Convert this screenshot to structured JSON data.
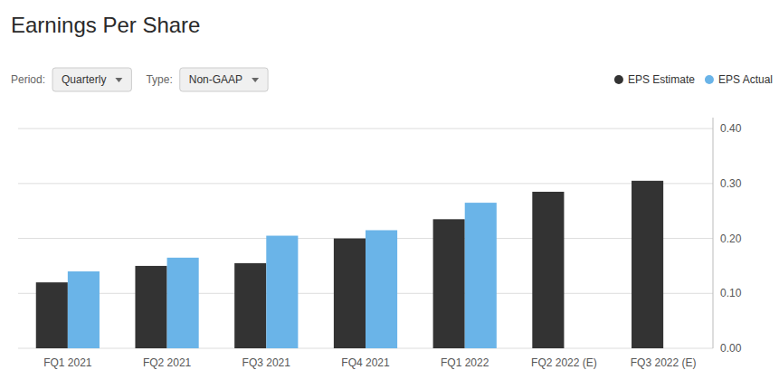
{
  "chart_data": {
    "type": "bar",
    "title": "Earnings Per Share",
    "annotations": [
      "Period:",
      "Quarterly",
      "Type:",
      "Non-GAAP"
    ],
    "categories": [
      "FQ1 2021",
      "FQ2 2021",
      "FQ3 2021",
      "FQ4 2021",
      "FQ1 2022",
      "FQ2 2022 (E)",
      "FQ3 2022 (E)"
    ],
    "series": [
      {
        "name": "EPS Estimate",
        "color": "#333333",
        "values": [
          0.12,
          0.15,
          0.155,
          0.2,
          0.235,
          0.285,
          0.305
        ]
      },
      {
        "name": "EPS Actual",
        "color": "#6ab4e8",
        "values": [
          0.14,
          0.165,
          0.205,
          0.215,
          0.265,
          null,
          null
        ]
      }
    ],
    "ylim": [
      0.0,
      0.42
    ],
    "yticks": [
      {
        "value": 0.0,
        "label": "0.00"
      },
      {
        "value": 0.1,
        "label": "0.10"
      },
      {
        "value": 0.2,
        "label": "0.20"
      },
      {
        "value": 0.3,
        "label": "0.30"
      },
      {
        "value": 0.4,
        "label": "0.40"
      }
    ],
    "grid": true,
    "legend": "top-right"
  }
}
